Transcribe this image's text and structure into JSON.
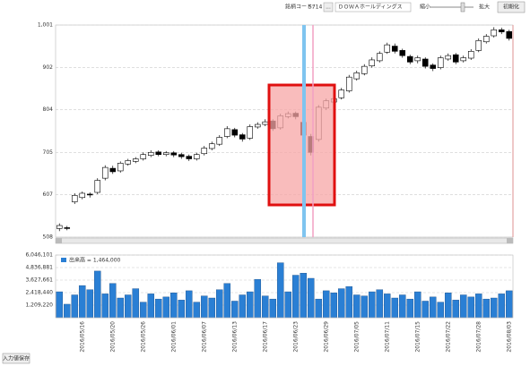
{
  "toolbar": {
    "code_label": "銘柄コード:",
    "code_value": "5714",
    "picker": "...",
    "company": "ＤＯＷＡホールディングス",
    "zoom_out": "縮小",
    "zoom_in": "拡大",
    "reset": "初期化"
  },
  "footer": {
    "button": "入力値保存"
  },
  "chart_data": [
    {
      "type": "candlestick",
      "color_up": "#ffffff",
      "color_down": "#000000",
      "grid": true,
      "ylim": [
        508,
        1001
      ],
      "yticks": [
        {
          "value": 1001,
          "label": "1,001"
        },
        902,
        804,
        705,
        607,
        508
      ],
      "open": [
        528,
        530,
        590,
        600,
        608,
        612,
        645,
        668,
        662,
        678,
        684,
        690,
        698,
        706,
        700,
        704,
        700,
        696,
        690,
        702,
        714,
        724,
        742,
        758,
        746,
        738,
        764,
        770,
        778,
        762,
        788,
        796,
        775,
        742,
        735,
        808,
        822,
        832,
        848,
        876,
        888,
        906,
        918,
        938,
        952,
        942,
        928,
        918,
        922,
        908,
        902,
        922,
        932,
        918,
        924,
        942,
        962,
        976,
        990,
        986
      ],
      "high": [
        540,
        534,
        610,
        614,
        612,
        645,
        675,
        674,
        684,
        690,
        694,
        705,
        710,
        710,
        708,
        708,
        704,
        700,
        704,
        720,
        730,
        745,
        766,
        762,
        750,
        770,
        775,
        782,
        782,
        795,
        800,
        800,
        780,
        748,
        815,
        830,
        836,
        855,
        885,
        895,
        910,
        926,
        940,
        960,
        958,
        946,
        932,
        930,
        926,
        912,
        930,
        935,
        936,
        930,
        945,
        970,
        980,
        996,
        995,
        990
      ],
      "low": [
        522,
        524,
        585,
        596,
        600,
        608,
        640,
        655,
        658,
        674,
        680,
        686,
        694,
        696,
        696,
        694,
        690,
        685,
        686,
        698,
        710,
        720,
        738,
        740,
        730,
        734,
        760,
        766,
        755,
        758,
        784,
        782,
        740,
        698,
        730,
        804,
        818,
        828,
        844,
        872,
        884,
        902,
        914,
        934,
        935,
        925,
        910,
        912,
        900,
        894,
        898,
        918,
        910,
        914,
        920,
        938,
        958,
        972,
        980,
        965
      ],
      "close": [
        535,
        528,
        605,
        610,
        606,
        640,
        670,
        660,
        680,
        686,
        690,
        700,
        705,
        700,
        704,
        699,
        695,
        690,
        700,
        715,
        725,
        740,
        760,
        745,
        736,
        765,
        770,
        776,
        760,
        790,
        795,
        788,
        745,
        705,
        810,
        825,
        830,
        850,
        880,
        890,
        905,
        920,
        935,
        955,
        940,
        930,
        915,
        925,
        905,
        900,
        925,
        930,
        915,
        925,
        940,
        965,
        975,
        990,
        985,
        970
      ]
    },
    {
      "type": "bar",
      "grid": true,
      "categories": [
        null,
        null,
        null,
        "2016/05/16",
        null,
        null,
        null,
        "2016/05/20",
        null,
        null,
        null,
        "2016/05/26",
        null,
        null,
        null,
        "2016/06/01",
        null,
        null,
        null,
        "2016/06/07",
        null,
        null,
        null,
        "2016/06/13",
        null,
        null,
        null,
        "2016/06/17",
        null,
        null,
        null,
        "2016/06/23",
        null,
        null,
        null,
        "2016/06/29",
        null,
        null,
        null,
        "2016/07/05",
        null,
        null,
        null,
        "2016/07/11",
        null,
        null,
        null,
        "2016/07/15",
        null,
        null,
        null,
        "2016/07/22",
        null,
        null,
        null,
        "2016/07/28",
        null,
        null,
        null,
        "2016/08/03"
      ],
      "ylim": [
        0,
        6046101
      ],
      "yticks": [
        {
          "value": 6046101,
          "label": "6,046,101"
        },
        {
          "value": 4836881,
          "label": "4,836,881"
        },
        {
          "value": 3627661,
          "label": "3,627,661"
        },
        {
          "value": 2418440,
          "label": "2,418,440"
        },
        {
          "value": 1209220,
          "label": "1,209,220"
        }
      ],
      "series": [
        {
          "name": "出来高 = 1,464,000",
          "color": "#2a7fd4",
          "values": [
            2500000,
            1300000,
            2200000,
            3100000,
            2700000,
            4500000,
            2300000,
            3300000,
            1900000,
            2200000,
            2800000,
            1500000,
            2300000,
            1800000,
            2000000,
            2400000,
            1700000,
            2600000,
            1500000,
            2100000,
            1900000,
            2700000,
            3300000,
            1600000,
            2200000,
            2500000,
            3700000,
            2100000,
            1800000,
            5300000,
            2500000,
            4100000,
            4300000,
            3800000,
            1800000,
            2600000,
            2400000,
            2800000,
            3000000,
            2200000,
            2100000,
            2500000,
            2700000,
            2300000,
            1900000,
            2200000,
            1800000,
            2500000,
            1600000,
            2000000,
            1500000,
            2400000,
            1700000,
            2200000,
            2000000,
            2300000,
            1800000,
            1900000,
            2300000,
            2600000
          ]
        }
      ]
    }
  ]
}
